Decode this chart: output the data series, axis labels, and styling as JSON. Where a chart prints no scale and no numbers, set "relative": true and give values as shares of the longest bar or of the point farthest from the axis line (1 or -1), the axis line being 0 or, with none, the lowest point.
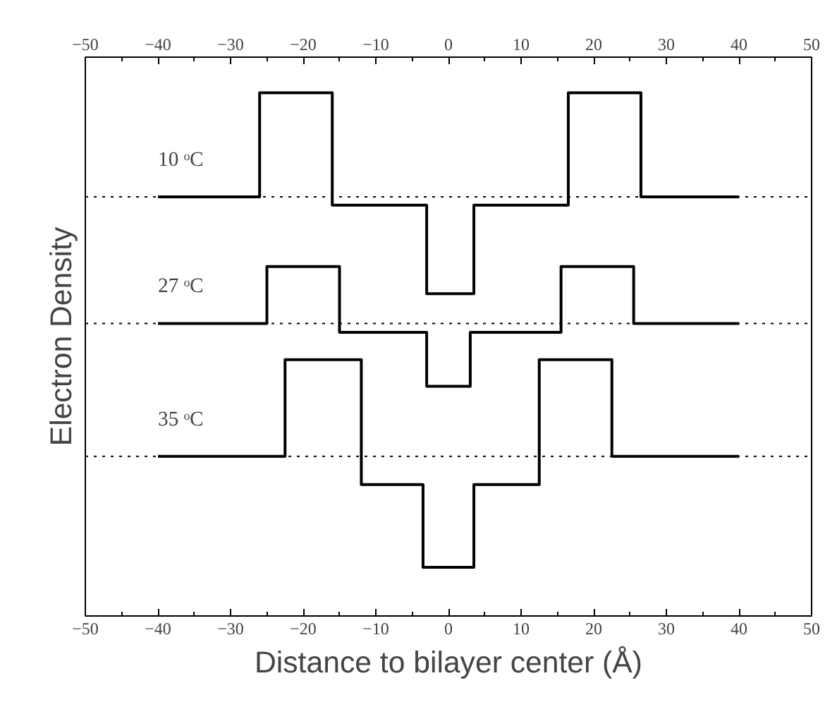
{
  "chart_data": {
    "type": "step",
    "relative": true,
    "xlabel": "Distance to bilayer center (Å)",
    "ylabel": "Electron Density",
    "xlim": [
      -50,
      50
    ],
    "xticks": [
      -50,
      -40,
      -30,
      -20,
      -10,
      0,
      10,
      20,
      30,
      40,
      50
    ],
    "x2lim": [
      -50,
      50
    ],
    "x2ticks": [
      -50,
      -40,
      -30,
      -20,
      -10,
      0,
      10,
      20,
      30,
      40,
      50
    ],
    "grid": false,
    "legend": false,
    "marker": "none",
    "line_style": "solid",
    "series": [
      {
        "name": "10 ᵒC",
        "color": "#000000",
        "x": [
          -40,
          -26,
          -16,
          -3,
          3.5,
          16.5,
          26.5,
          40
        ],
        "values": [
          0.801,
          1,
          0.785,
          0.616,
          0.785,
          1,
          0.801,
          0.801
        ]
      },
      {
        "name": "27 ᵒC",
        "color": "#000000",
        "x": [
          -40,
          -25,
          -15,
          -3,
          3,
          15.5,
          25.5,
          40
        ],
        "values": [
          0.559,
          0.668,
          0.542,
          0.439,
          0.542,
          0.668,
          0.559,
          0.559
        ]
      },
      {
        "name": "35 ᵒC",
        "color": "#000000",
        "x": [
          -40,
          -22.5,
          -12,
          -3.5,
          3.5,
          12.5,
          22.5,
          40
        ],
        "values": [
          0.305,
          0.49,
          0.251,
          0.093,
          0.251,
          0.49,
          0.305,
          0.305
        ]
      }
    ],
    "ref_lines": [
      {
        "axis": "y",
        "value": 0.801,
        "label": null,
        "color": "#000000",
        "line_style": "dotted"
      },
      {
        "axis": "y",
        "value": 0.559,
        "label": null,
        "color": "#000000",
        "line_style": "dotted"
      },
      {
        "axis": "y",
        "value": 0.305,
        "label": null,
        "color": "#000000",
        "line_style": "dotted"
      }
    ]
  }
}
